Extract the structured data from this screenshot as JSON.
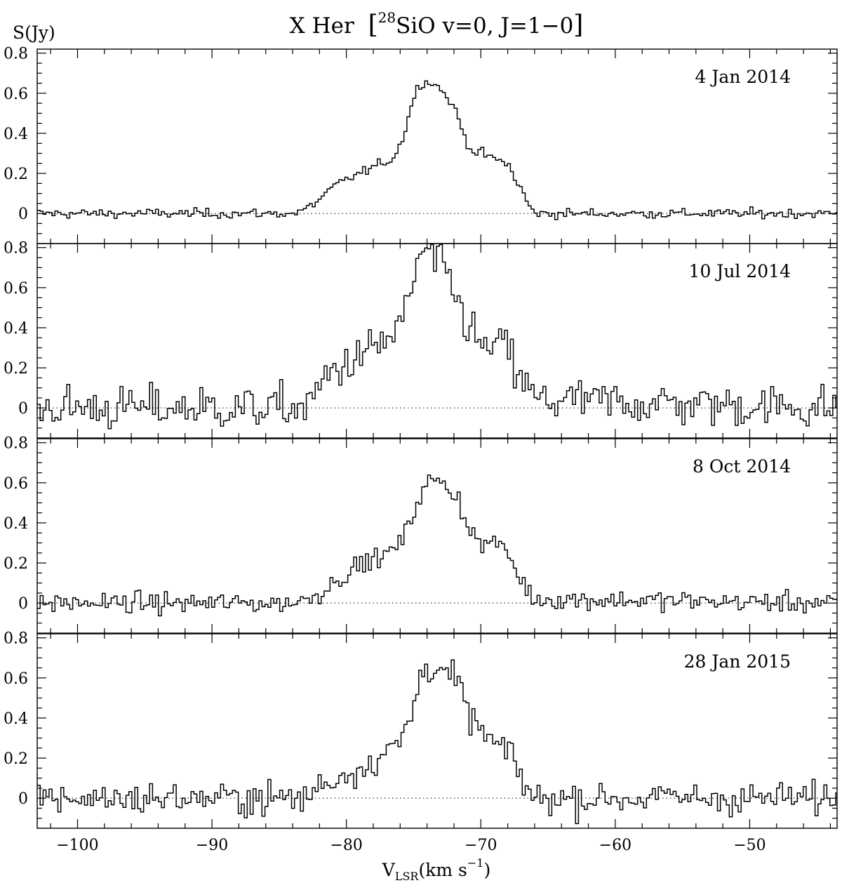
{
  "chart_data": {
    "type": "line",
    "title_object": "X Her",
    "title_isotope": "28",
    "title_transition": "SiO v=0, J=1−0",
    "ylabel": "S(Jy)",
    "xlabel_main": "V",
    "xlabel_sub": "LSR",
    "xlabel_unit": "(km s",
    "xlabel_exp": "−1",
    "xlabel_close": ")",
    "xlim": [
      -103,
      -43.5
    ],
    "x_ticks": [
      -100,
      -90,
      -80,
      -70,
      -60,
      -50
    ],
    "x_tick_labels": [
      "−100",
      "−90",
      "−80",
      "−70",
      "−60",
      "−50"
    ],
    "ylim": [
      -0.15,
      0.82
    ],
    "y_ticks": [
      0,
      0.2,
      0.4,
      0.6,
      0.8
    ],
    "y_tick_labels": [
      "0",
      "0.2",
      "0.4",
      "0.6",
      "0.8"
    ],
    "baseline": 0,
    "line_color": "#000000",
    "panels": [
      {
        "date": "4 Jan 2014",
        "noise": 0.012,
        "profile": {
          "x": [
            -103,
            -84,
            -83,
            -82,
            -81,
            -80,
            -79,
            -78,
            -77,
            -76.5,
            -76,
            -75.5,
            -75,
            -74.5,
            -74,
            -73.5,
            -73,
            -72.5,
            -72,
            -71.5,
            -71,
            -70.5,
            -70,
            -69.5,
            -69,
            -68.5,
            -68,
            -67.5,
            -67,
            -66.5,
            -66,
            -43.5
          ],
          "y": [
            0,
            0,
            0.02,
            0.07,
            0.13,
            0.17,
            0.2,
            0.23,
            0.26,
            0.28,
            0.34,
            0.45,
            0.58,
            0.65,
            0.66,
            0.65,
            0.62,
            0.58,
            0.53,
            0.44,
            0.35,
            0.31,
            0.3,
            0.29,
            0.27,
            0.26,
            0.25,
            0.18,
            0.12,
            0.05,
            0,
            0
          ]
        }
      },
      {
        "date": "10 Jul 2014",
        "noise": 0.055,
        "profile": {
          "x": [
            -103,
            -83,
            -82,
            -81,
            -80,
            -79,
            -78,
            -77,
            -76,
            -75.5,
            -75,
            -74.5,
            -74,
            -73.5,
            -73,
            -72.5,
            -72,
            -71.5,
            -71,
            -70.5,
            -70,
            -69.5,
            -69,
            -68.5,
            -68,
            -67.5,
            -67,
            -66.5,
            -66,
            -43.5
          ],
          "y": [
            0,
            0,
            0.1,
            0.19,
            0.22,
            0.25,
            0.3,
            0.34,
            0.4,
            0.5,
            0.65,
            0.75,
            0.78,
            0.75,
            0.7,
            0.65,
            0.58,
            0.5,
            0.42,
            0.36,
            0.31,
            0.29,
            0.3,
            0.32,
            0.3,
            0.2,
            0.14,
            0.1,
            0.04,
            0
          ]
        }
      },
      {
        "date": "8 Oct 2014",
        "noise": 0.025,
        "profile": {
          "x": [
            -103,
            -84,
            -83,
            -82,
            -81,
            -80,
            -79,
            -78,
            -77,
            -76,
            -75.5,
            -75,
            -74.5,
            -74,
            -73.5,
            -73,
            -72.5,
            -72,
            -71.5,
            -71,
            -70.5,
            -70,
            -69.5,
            -69,
            -68.5,
            -68,
            -67.5,
            -67,
            -66.5,
            -66,
            -43.5
          ],
          "y": [
            0,
            0,
            0.02,
            0.05,
            0.1,
            0.15,
            0.19,
            0.22,
            0.24,
            0.3,
            0.36,
            0.45,
            0.55,
            0.6,
            0.61,
            0.6,
            0.58,
            0.55,
            0.49,
            0.4,
            0.33,
            0.3,
            0.29,
            0.3,
            0.29,
            0.25,
            0.18,
            0.11,
            0.06,
            0.02,
            0
          ]
        }
      },
      {
        "date": "28 Jan 2015",
        "noise": 0.04,
        "profile": {
          "x": [
            -103,
            -83,
            -82,
            -81,
            -80,
            -79,
            -78,
            -77,
            -76,
            -75.5,
            -75,
            -74.5,
            -74,
            -73.5,
            -73,
            -72.5,
            -72,
            -71.5,
            -71,
            -70.5,
            -70,
            -69.5,
            -69,
            -68.5,
            -68,
            -67.5,
            -67,
            -66.5,
            -66,
            -43.5
          ],
          "y": [
            0,
            0,
            0.06,
            0.09,
            0.12,
            0.15,
            0.19,
            0.23,
            0.28,
            0.35,
            0.46,
            0.6,
            0.67,
            0.66,
            0.64,
            0.62,
            0.6,
            0.52,
            0.44,
            0.38,
            0.34,
            0.3,
            0.27,
            0.25,
            0.23,
            0.18,
            0.1,
            0.04,
            0,
            0
          ]
        }
      }
    ]
  }
}
